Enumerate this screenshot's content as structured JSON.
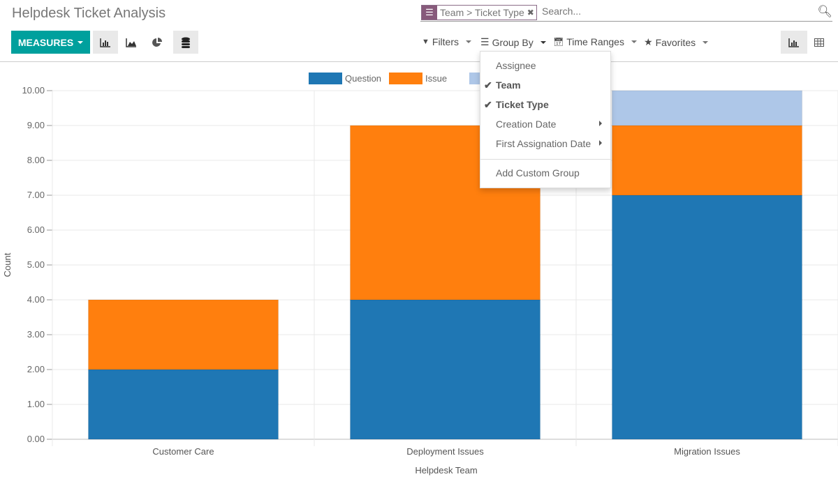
{
  "header": {
    "title": "Helpdesk Ticket Analysis"
  },
  "search": {
    "facet_icon": "bars-icon",
    "facet_label": "Team > Ticket Type",
    "placeholder": "Search..."
  },
  "toolbar": {
    "measures": "MEASURES",
    "filters": "Filters",
    "group_by": "Group By",
    "time_ranges": "Time Ranges",
    "favorites": "Favorites"
  },
  "group_by_menu": {
    "items": [
      {
        "label": "Assignee",
        "checked": false,
        "submenu": false
      },
      {
        "label": "Team",
        "checked": true,
        "submenu": false
      },
      {
        "label": "Ticket Type",
        "checked": true,
        "submenu": false
      },
      {
        "label": "Creation Date",
        "checked": false,
        "submenu": true
      },
      {
        "label": "First Assignation Date",
        "checked": false,
        "submenu": true
      }
    ],
    "custom": "Add Custom Group"
  },
  "chart_data": {
    "type": "bar",
    "stacked": true,
    "categories": [
      "Customer Care",
      "Deployment Issues",
      "Migration Issues"
    ],
    "series": [
      {
        "name": "Question",
        "color": "#1f77b4",
        "values": [
          2,
          4,
          7
        ]
      },
      {
        "name": "Issue",
        "color": "#ff7f0e",
        "values": [
          2,
          5,
          2
        ]
      },
      {
        "color": "#aec7e8",
        "values": [
          0,
          0,
          1
        ]
      }
    ],
    "xlabel": "Helpdesk Team",
    "ylabel": "Count",
    "ylim": [
      0,
      10
    ],
    "yticks": [
      "0.00",
      "1.00",
      "2.00",
      "3.00",
      "4.00",
      "5.00",
      "6.00",
      "7.00",
      "8.00",
      "9.00",
      "10.00"
    ],
    "grid": true,
    "legend": "top"
  }
}
